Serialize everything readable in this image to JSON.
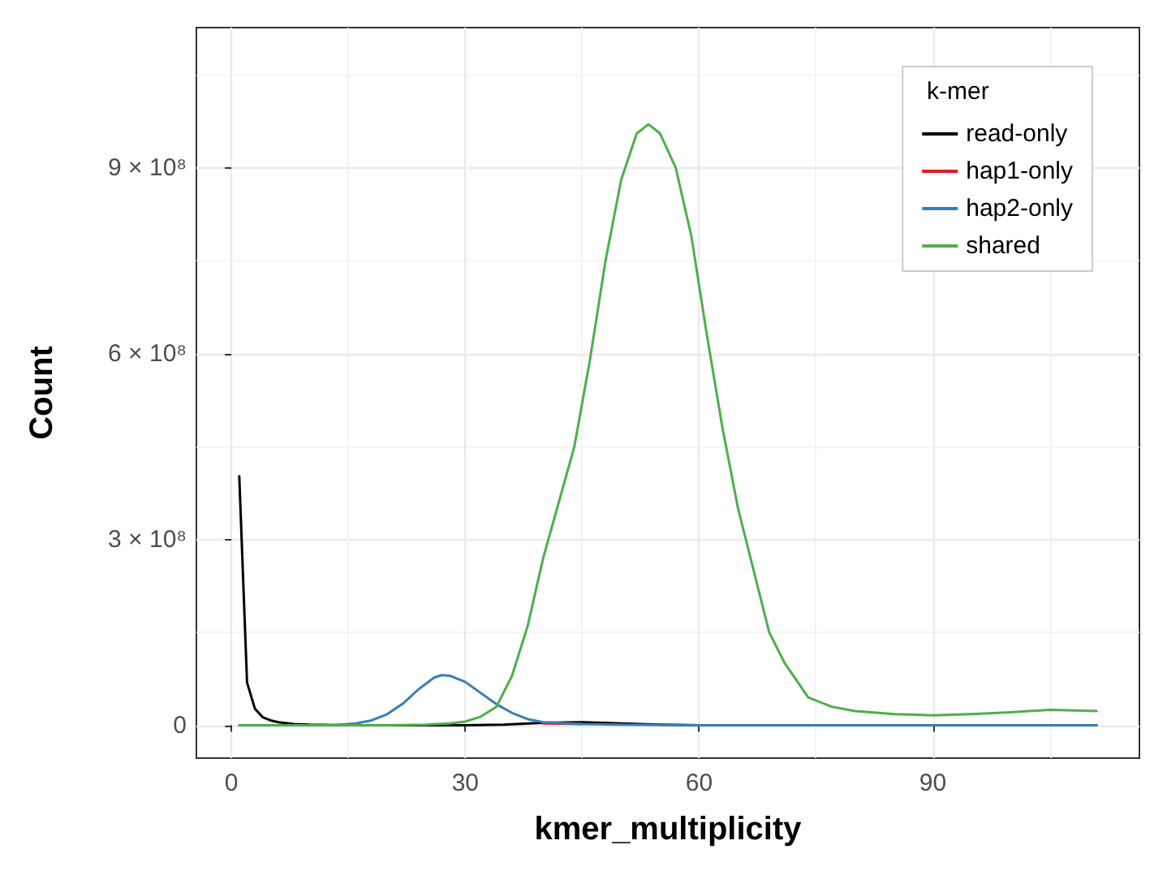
{
  "chart_data": {
    "type": "line",
    "xlabel": "kmer_multiplicity",
    "ylabel": "Count",
    "legend_title": "k-mer",
    "legend": "top right",
    "grid": true,
    "marker": "none",
    "line_style": "solid",
    "xlim": [
      -4.5,
      116.5
    ],
    "xticks": [
      0,
      30,
      60,
      90
    ],
    "ylim": [
      -53000000,
      1126000000
    ],
    "yticks": [
      0,
      {
        "value": 300000000,
        "label": "3 × 10⁸"
      },
      {
        "value": 600000000,
        "label": "6 × 10⁸"
      },
      {
        "value": 900000000,
        "label": "9 × 10⁸"
      }
    ],
    "series": [
      {
        "name": "read-only",
        "color": "#000000",
        "x": [
          1,
          2,
          3,
          4,
          5,
          6,
          8,
          10,
          15,
          30,
          35,
          40,
          45,
          50,
          55,
          60,
          111
        ],
        "values": [
          402000000,
          69000000,
          27000000,
          13000000,
          8000000,
          5000000,
          2000000,
          1000000,
          0,
          0,
          1000000,
          4000000,
          5000000,
          3000000,
          1000000,
          0,
          0
        ]
      },
      {
        "name": "hap1-only",
        "color": "#e41a1c",
        "x": [
          40,
          45
        ],
        "values": [
          3000000,
          2000000
        ]
      },
      {
        "name": "hap2-only",
        "color": "#377eb8",
        "x": [
          1,
          13,
          16,
          18,
          20,
          22,
          24,
          26,
          27,
          28,
          30,
          32,
          34,
          36,
          38,
          40,
          45,
          50,
          60,
          111
        ],
        "values": [
          0,
          0,
          3000000,
          8000000,
          18000000,
          35000000,
          58000000,
          77000000,
          81000000,
          80000000,
          70000000,
          52000000,
          34000000,
          20000000,
          10000000,
          5000000,
          2000000,
          1000000,
          0,
          0
        ]
      },
      {
        "name": "shared",
        "color": "#4daf4a",
        "x": [
          1,
          10,
          20,
          25,
          28,
          30,
          32,
          34,
          36,
          38,
          40,
          42,
          44,
          46,
          48,
          50,
          52,
          53.5,
          55,
          57,
          59,
          61,
          63,
          65,
          66,
          69,
          71,
          74,
          77,
          80,
          85,
          90,
          95,
          100,
          105,
          111
        ],
        "values": [
          0,
          0,
          0,
          1000000,
          3000000,
          6000000,
          14000000,
          30000000,
          80000000,
          160000000,
          270000000,
          360000000,
          450000000,
          590000000,
          750000000,
          880000000,
          955000000,
          970000000,
          955000000,
          900000000,
          790000000,
          630000000,
          480000000,
          350000000,
          300000000,
          150000000,
          100000000,
          45000000,
          30000000,
          23000000,
          18000000,
          16000000,
          18000000,
          21000000,
          25000000,
          23000000
        ]
      }
    ]
  }
}
